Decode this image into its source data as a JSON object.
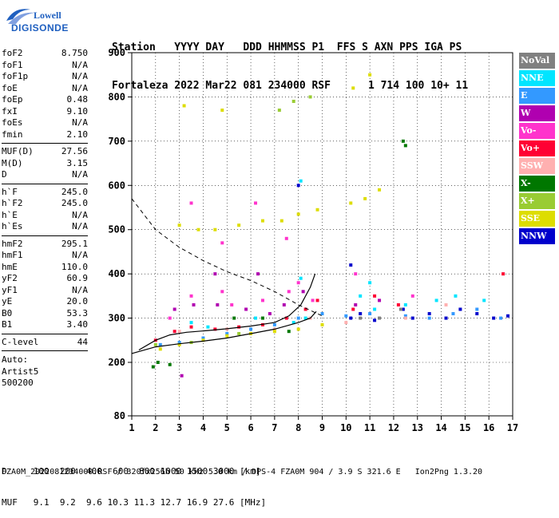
{
  "logo": {
    "line1": "Lowell",
    "line2": "DIGISONDE"
  },
  "header": {
    "row1": [
      "Station",
      "YYYY DAY",
      "DDD HHMMSS P1",
      "FFS S AXN PPS IGA PS"
    ],
    "row2": [
      "Fortaleza",
      "2022 Mar22",
      "081 234000 RSF",
      "1 714 100 10+ 11"
    ]
  },
  "params": [
    {
      "label": "foF2",
      "value": "8.750"
    },
    {
      "label": "foF1",
      "value": "N/A"
    },
    {
      "label": "foF1p",
      "value": "N/A"
    },
    {
      "label": "foE",
      "value": "N/A"
    },
    {
      "label": "foEp",
      "value": "0.48"
    },
    {
      "label": "fxI",
      "value": "9.10"
    },
    {
      "label": "foEs",
      "value": "N/A"
    },
    {
      "label": "fmin",
      "value": "2.10"
    }
  ],
  "params2": [
    {
      "label": "MUF(D)",
      "value": "27.56"
    },
    {
      "label": "M(D)",
      "value": "3.15"
    },
    {
      "label": "D",
      "value": "N/A"
    }
  ],
  "params3": [
    {
      "label": "h`F",
      "value": "245.0"
    },
    {
      "label": "h`F2",
      "value": "245.0"
    },
    {
      "label": "h`E",
      "value": "N/A"
    },
    {
      "label": "h`Es",
      "value": "N/A"
    }
  ],
  "params4": [
    {
      "label": "hmF2",
      "value": "295.1"
    },
    {
      "label": "hmF1",
      "value": "N/A"
    },
    {
      "label": "hmE",
      "value": "110.0"
    },
    {
      "label": "yF2",
      "value": "60.9"
    },
    {
      "label": "yF1",
      "value": "N/A"
    },
    {
      "label": "yE",
      "value": "20.0"
    },
    {
      "label": "B0",
      "value": "53.3"
    },
    {
      "label": "B1",
      "value": "3.40"
    }
  ],
  "params5": [
    {
      "label": "C-level",
      "value": "44"
    }
  ],
  "auto": [
    "Auto:",
    "Artist5",
    "500200"
  ],
  "legend": [
    {
      "label": "NoVal",
      "color": "#808080"
    },
    {
      "label": "NNE",
      "color": "#00e5ff"
    },
    {
      "label": "E",
      "color": "#3399ff"
    },
    {
      "label": "W",
      "color": "#b000b0"
    },
    {
      "label": "Vo-",
      "color": "#ff33cc"
    },
    {
      "label": "Vo+",
      "color": "#ff0033"
    },
    {
      "label": "SSW",
      "color": "#ffb0b0"
    },
    {
      "label": "X-",
      "color": "#007700"
    },
    {
      "label": "X+",
      "color": "#99cc33"
    },
    {
      "label": "SSE",
      "color": "#dddd00"
    },
    {
      "label": "NNW",
      "color": "#0000cc"
    }
  ],
  "bottom": {
    "d_line": "D     100  200  400  600  800 1000 1500 3000 [km]",
    "muf_line": "MUF   9.1  9.2  9.6 10.3 11.3 12.7 16.9 27.6 [MHz]"
  },
  "footer": "FZA0M_2022081234000.RSF / 320fx256h 50 kHz 5.0 km / DPS-4 FZA0M 904 / 3.9 S 321.6 E   Ion2Png 1.3.20",
  "chart_data": {
    "type": "scatter",
    "xlabel": "",
    "ylabel": "",
    "xlim": [
      1,
      17
    ],
    "ylim": [
      80,
      900
    ],
    "x_ticks": [
      1,
      2,
      3,
      4,
      5,
      6,
      7,
      8,
      9,
      10,
      11,
      12,
      13,
      14,
      15,
      16,
      17
    ],
    "y_ticks": [
      80,
      200,
      300,
      400,
      500,
      600,
      700,
      800,
      900
    ],
    "grid": "dotted",
    "series": [
      {
        "name": "NNW",
        "color": "#0000cc",
        "points": [
          [
            10.2,
            300
          ],
          [
            10.6,
            310
          ],
          [
            11.2,
            295
          ],
          [
            12.4,
            320
          ],
          [
            12.8,
            300
          ],
          [
            13.5,
            310
          ],
          [
            14.2,
            300
          ],
          [
            14.8,
            320
          ],
          [
            15.5,
            310
          ],
          [
            16.2,
            300
          ],
          [
            16.8,
            305
          ],
          [
            8.0,
            600
          ],
          [
            10.2,
            420
          ]
        ]
      },
      {
        "name": "NNE",
        "color": "#00e5ff",
        "points": [
          [
            3.5,
            290
          ],
          [
            4.2,
            280
          ],
          [
            6.2,
            300
          ],
          [
            7.8,
            290
          ],
          [
            8.3,
            300
          ],
          [
            9.0,
            310
          ],
          [
            10.6,
            350
          ],
          [
            11.2,
            320
          ],
          [
            12.5,
            330
          ],
          [
            13.8,
            340
          ],
          [
            14.6,
            350
          ],
          [
            15.8,
            340
          ],
          [
            8.1,
            390
          ],
          [
            8.1,
            610
          ],
          [
            11.0,
            380
          ]
        ]
      },
      {
        "name": "E",
        "color": "#3399ff",
        "points": [
          [
            2.2,
            240
          ],
          [
            3.0,
            245
          ],
          [
            4.0,
            255
          ],
          [
            5.0,
            265
          ],
          [
            6.0,
            275
          ],
          [
            7.0,
            285
          ],
          [
            8.0,
            300
          ],
          [
            9.0,
            310
          ],
          [
            10.0,
            305
          ],
          [
            11.0,
            310
          ],
          [
            12.5,
            305
          ],
          [
            13.5,
            300
          ],
          [
            14.5,
            310
          ],
          [
            15.5,
            320
          ],
          [
            16.5,
            300
          ]
        ]
      },
      {
        "name": "W",
        "color": "#b000b0",
        "points": [
          [
            2.8,
            320
          ],
          [
            3.6,
            330
          ],
          [
            4.6,
            330
          ],
          [
            5.8,
            320
          ],
          [
            6.8,
            310
          ],
          [
            7.4,
            330
          ],
          [
            8.2,
            360
          ],
          [
            10.4,
            330
          ],
          [
            11.4,
            340
          ],
          [
            3.1,
            170
          ],
          [
            4.5,
            400
          ],
          [
            6.3,
            400
          ]
        ]
      },
      {
        "name": "Vo-",
        "color": "#ff33cc",
        "points": [
          [
            2.6,
            300
          ],
          [
            3.5,
            350
          ],
          [
            4.8,
            360
          ],
          [
            5.2,
            330
          ],
          [
            6.5,
            340
          ],
          [
            7.6,
            360
          ],
          [
            8.0,
            380
          ],
          [
            8.6,
            340
          ],
          [
            3.5,
            560
          ],
          [
            4.8,
            470
          ],
          [
            6.2,
            560
          ],
          [
            7.5,
            480
          ],
          [
            10.4,
            400
          ],
          [
            12.8,
            350
          ]
        ]
      },
      {
        "name": "Vo+",
        "color": "#ff0033",
        "points": [
          [
            2.0,
            250
          ],
          [
            2.8,
            270
          ],
          [
            3.5,
            280
          ],
          [
            4.5,
            275
          ],
          [
            5.5,
            280
          ],
          [
            6.5,
            285
          ],
          [
            7.5,
            300
          ],
          [
            8.3,
            320
          ],
          [
            8.8,
            340
          ],
          [
            10.3,
            320
          ],
          [
            11.2,
            350
          ],
          [
            12.2,
            330
          ],
          [
            16.6,
            400
          ]
        ]
      },
      {
        "name": "SSW",
        "color": "#ffb0b0",
        "points": [
          [
            3.0,
            270
          ],
          [
            5.0,
            275
          ],
          [
            7.0,
            275
          ],
          [
            8.5,
            300
          ],
          [
            10.0,
            290
          ],
          [
            12.5,
            300
          ],
          [
            14.2,
            330
          ]
        ]
      },
      {
        "name": "X-",
        "color": "#007700",
        "points": [
          [
            1.9,
            190
          ],
          [
            2.1,
            200
          ],
          [
            2.6,
            195
          ],
          [
            5.3,
            300
          ],
          [
            6.5,
            300
          ],
          [
            7.6,
            270
          ],
          [
            12.4,
            700
          ],
          [
            12.5,
            690
          ]
        ]
      },
      {
        "name": "X+",
        "color": "#99cc33",
        "points": [
          [
            2.0,
            240
          ],
          [
            3.5,
            245
          ],
          [
            5.5,
            265
          ],
          [
            7.2,
            770
          ],
          [
            7.8,
            790
          ],
          [
            8.5,
            800
          ]
        ]
      },
      {
        "name": "SSE",
        "color": "#dddd00",
        "points": [
          [
            2.2,
            230
          ],
          [
            3.0,
            240
          ],
          [
            4.0,
            250
          ],
          [
            5.0,
            260
          ],
          [
            6.0,
            265
          ],
          [
            7.0,
            270
          ],
          [
            8.0,
            275
          ],
          [
            9.0,
            285
          ],
          [
            3.0,
            510
          ],
          [
            3.8,
            500
          ],
          [
            4.5,
            500
          ],
          [
            5.5,
            510
          ],
          [
            6.5,
            520
          ],
          [
            7.3,
            520
          ],
          [
            8.0,
            535
          ],
          [
            8.8,
            545
          ],
          [
            10.2,
            560
          ],
          [
            10.8,
            570
          ],
          [
            11.4,
            590
          ],
          [
            10.3,
            820
          ],
          [
            11.0,
            850
          ],
          [
            3.2,
            780
          ],
          [
            4.8,
            770
          ]
        ]
      },
      {
        "name": "NoVal",
        "color": "#808080",
        "points": [
          [
            10.6,
            300
          ],
          [
            11.4,
            300
          ],
          [
            12.3,
            320
          ]
        ]
      }
    ],
    "profile": [
      [
        1.0,
        220
      ],
      [
        2.0,
        235
      ],
      [
        3.0,
        242
      ],
      [
        4.0,
        248
      ],
      [
        5.0,
        255
      ],
      [
        6.0,
        265
      ],
      [
        7.0,
        275
      ],
      [
        8.0,
        290
      ],
      [
        8.5,
        300
      ],
      [
        8.75,
        315
      ]
    ],
    "trace": [
      [
        1.3,
        228
      ],
      [
        2.0,
        250
      ],
      [
        2.6,
        262
      ],
      [
        3.3,
        268
      ],
      [
        4.2,
        272
      ],
      [
        5.0,
        276
      ],
      [
        6.0,
        282
      ],
      [
        7.0,
        290
      ],
      [
        7.6,
        305
      ],
      [
        8.1,
        330
      ],
      [
        8.5,
        370
      ],
      [
        8.7,
        400
      ]
    ],
    "muf_curve": [
      [
        1.0,
        570
      ],
      [
        2.0,
        500
      ],
      [
        3.0,
        460
      ],
      [
        4.0,
        430
      ],
      [
        5.0,
        405
      ],
      [
        6.0,
        385
      ],
      [
        7.0,
        360
      ],
      [
        8.0,
        330
      ],
      [
        9.0,
        305
      ]
    ]
  }
}
